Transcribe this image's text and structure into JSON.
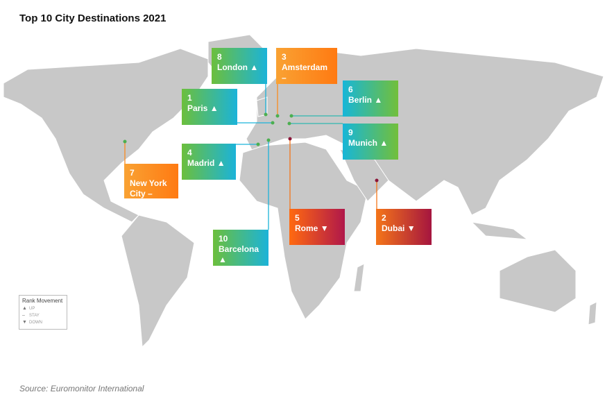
{
  "title": "Top 10 City Destinations 2021",
  "cities": [
    {
      "rank": 8,
      "name": "London",
      "movement": "▲"
    },
    {
      "rank": 3,
      "name": "Amsterdam",
      "movement": "–"
    },
    {
      "rank": 1,
      "name": "Paris",
      "movement": "▲"
    },
    {
      "rank": 6,
      "name": "Berlin",
      "movement": "▲"
    },
    {
      "rank": 9,
      "name": "Munich",
      "movement": "▲"
    },
    {
      "rank": 4,
      "name": "Madrid",
      "movement": "▲"
    },
    {
      "rank": 7,
      "name": "New York City",
      "movement": "–"
    },
    {
      "rank": 10,
      "name": "Barcelona",
      "movement": "▲"
    },
    {
      "rank": 5,
      "name": "Rome",
      "movement": "▼"
    },
    {
      "rank": 2,
      "name": "Dubai",
      "movement": "▼"
    }
  ],
  "legend": {
    "title": "Rank Movement",
    "items": [
      {
        "symbol": "▲",
        "label": "UP"
      },
      {
        "symbol": "–",
        "label": "STAY"
      },
      {
        "symbol": "▼",
        "label": "DOWN"
      }
    ]
  },
  "source": "Source: Euromonitor International"
}
